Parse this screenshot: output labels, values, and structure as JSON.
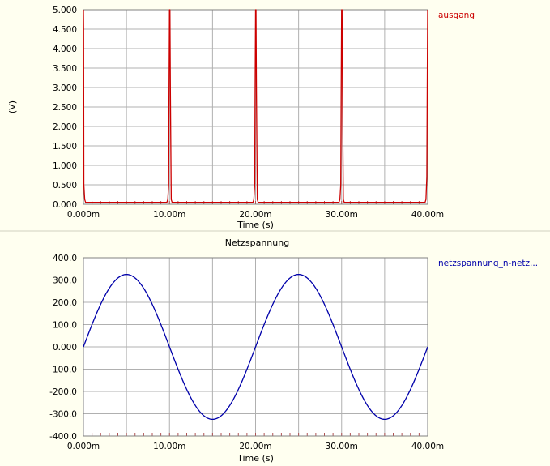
{
  "chart_data": [
    {
      "type": "line",
      "title": "",
      "xlabel": "Time (s)",
      "ylabel": "(V)",
      "xlim": [
        0,
        40
      ],
      "ylim": [
        0,
        5
      ],
      "x_unit": "ms",
      "grid": true,
      "legend_position": "top-right",
      "x_tick_labels": [
        "0.000m",
        "10.00m",
        "20.00m",
        "30.00m",
        "40.00m"
      ],
      "y_tick_labels": [
        "0.000",
        "0.500",
        "1.000",
        "1.500",
        "2.000",
        "2.500",
        "3.000",
        "3.500",
        "4.000",
        "4.500",
        "5.000"
      ],
      "series": [
        {
          "name": "ausgang",
          "color": "#cc0000",
          "x": [
            0,
            0.02,
            0.05,
            0.15,
            0.25,
            9.7,
            9.8,
            9.9,
            9.95,
            10.0,
            10.05,
            10.1,
            10.2,
            10.3,
            19.7,
            19.8,
            19.9,
            19.95,
            20.0,
            20.05,
            20.1,
            20.2,
            20.3,
            29.7,
            29.8,
            29.9,
            29.95,
            30.0,
            30.05,
            30.1,
            30.2,
            30.3,
            39.7,
            39.8,
            39.9,
            39.95,
            40.0
          ],
          "y": [
            5,
            4.5,
            0.5,
            0.12,
            0.05,
            0.05,
            0.12,
            0.5,
            3.0,
            5.0,
            5.0,
            3.0,
            0.12,
            0.05,
            0.05,
            0.12,
            0.5,
            3.0,
            5.0,
            5.0,
            3.0,
            0.12,
            0.05,
            0.05,
            0.12,
            0.5,
            3.0,
            5.0,
            5.0,
            3.0,
            0.12,
            0.05,
            0.05,
            0.12,
            0.7,
            3.0,
            5.0
          ]
        }
      ]
    },
    {
      "type": "line",
      "title": "Netzspannung",
      "xlabel": "Time (s)",
      "ylabel": "",
      "xlim": [
        0,
        40
      ],
      "ylim": [
        -400,
        400
      ],
      "x_unit": "ms",
      "grid": true,
      "legend_position": "top-right",
      "x_tick_labels": [
        "0.000m",
        "10.00m",
        "20.00m",
        "30.00m",
        "40.00m"
      ],
      "y_tick_labels": [
        "-400.0",
        "-300.0",
        "-200.0",
        "-100.0",
        "0.000",
        "100.0",
        "200.0",
        "300.0",
        "400.0"
      ],
      "series": [
        {
          "name": "netzspannung_n-netz...",
          "color": "#0000aa",
          "function": "325*sin(2*pi*50*t)",
          "amplitude": 325,
          "frequency_hz": 50,
          "x": [
            0,
            2.5,
            5,
            7.5,
            10,
            12.5,
            15,
            17.5,
            20,
            22.5,
            25,
            27.5,
            30,
            32.5,
            35,
            37.5,
            40
          ],
          "y": [
            0,
            230,
            325,
            230,
            0,
            -230,
            -325,
            -230,
            0,
            230,
            325,
            230,
            0,
            -230,
            -325,
            -230,
            0
          ]
        }
      ]
    }
  ]
}
